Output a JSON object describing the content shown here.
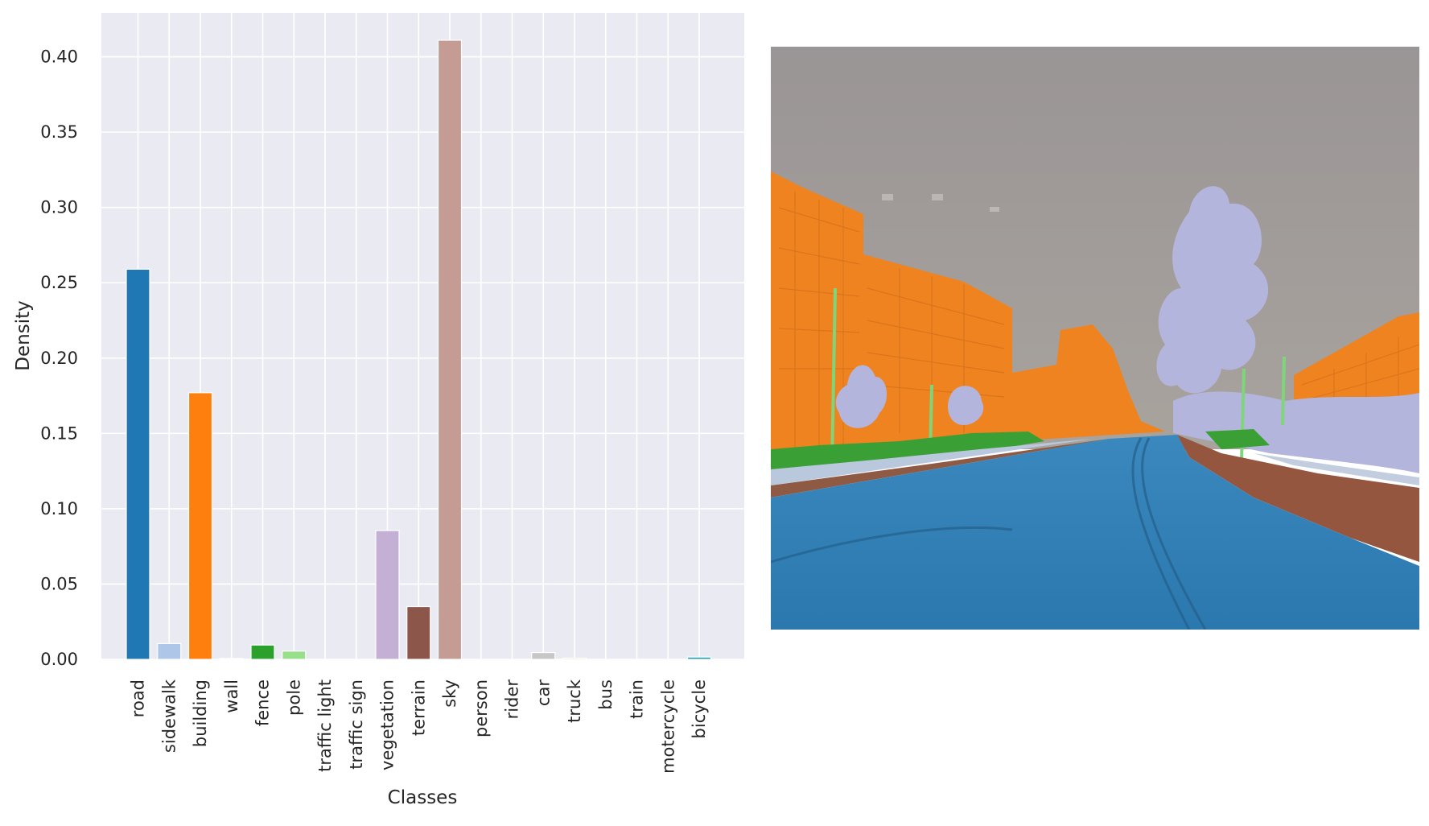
{
  "chart_data": {
    "type": "bar",
    "title": "",
    "xlabel": "Classes",
    "ylabel": "Density",
    "ylim": [
      0,
      0.43
    ],
    "yticks": [
      0.0,
      0.05,
      0.1,
      0.15,
      0.2,
      0.25,
      0.3,
      0.35,
      0.4
    ],
    "ytick_labels": [
      "0.00",
      "0.05",
      "0.10",
      "0.15",
      "0.20",
      "0.25",
      "0.30",
      "0.35",
      "0.40"
    ],
    "grid": true,
    "categories": [
      "road",
      "sidewalk",
      "building",
      "wall",
      "fence",
      "pole",
      "traffic light",
      "traffic sign",
      "vegetation",
      "terrain",
      "sky",
      "person",
      "rider",
      "car",
      "truck",
      "bus",
      "train",
      "motercycle",
      "bicycle"
    ],
    "values": [
      0.259,
      0.0105,
      0.177,
      0.0006,
      0.0095,
      0.0055,
      0.0,
      0.0,
      0.0855,
      0.035,
      0.411,
      0.0,
      0.0,
      0.0045,
      0.0008,
      0.0,
      0.0,
      0.0,
      0.0015
    ],
    "colors": [
      "#1f77b4",
      "#aec7e8",
      "#ff7f0e",
      "#ffbb78",
      "#2ca02c",
      "#98df8a",
      "#d62728",
      "#ff9896",
      "#c5b0d5",
      "#8c564b",
      "#c49c94",
      "#e377c2",
      "#f7b6d2",
      "#c7c7c7",
      "#dbdb8d",
      "#9edae5",
      "#bcbd22",
      "#17becf",
      "#1f9eaa"
    ]
  },
  "scene_image": {
    "kind": "semantic-segmentation-overlay",
    "colors": {
      "sky": "#9b9b9b",
      "building": "#f0821e",
      "road": "#2f7db6",
      "vegetation": "#b6b6dc",
      "terrain": "#94573f",
      "fence": "#3aa035",
      "pole": "#7fd67a",
      "sidewalk": "#b9c8dc"
    }
  }
}
